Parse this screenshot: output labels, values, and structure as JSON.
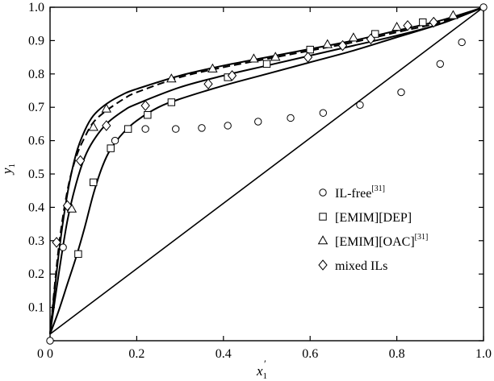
{
  "chart_data": {
    "type": "scatter",
    "xlabel": "x",
    "xlabel_sub": "1",
    "xlabel_prime": "′",
    "ylabel": "y",
    "ylabel_sub": "1",
    "xlim": [
      0,
      1.0
    ],
    "ylim": [
      0,
      1.0
    ],
    "x_ticks": [
      "0",
      "0.2",
      "0.4",
      "0.6",
      "0.8",
      "1.0"
    ],
    "y_ticks": [
      "0",
      "0.1",
      "0.2",
      "0.3",
      "0.4",
      "0.5",
      "0.6",
      "0.7",
      "0.8",
      "0.9",
      "1.0"
    ],
    "legend_position": "center-right",
    "series": [
      {
        "name": "IL-free",
        "ref": "[31]",
        "marker": "circle",
        "points": [
          [
            0.0,
            0.0
          ],
          [
            0.03,
            0.28
          ],
          [
            0.15,
            0.6
          ],
          [
            0.22,
            0.635
          ],
          [
            0.29,
            0.635
          ],
          [
            0.35,
            0.638
          ],
          [
            0.41,
            0.645
          ],
          [
            0.48,
            0.657
          ],
          [
            0.555,
            0.668
          ],
          [
            0.63,
            0.683
          ],
          [
            0.715,
            0.707
          ],
          [
            0.81,
            0.745
          ],
          [
            0.9,
            0.83
          ],
          [
            0.95,
            0.895
          ],
          [
            1.0,
            1.0
          ]
        ]
      },
      {
        "name": "[EMIM][DEP]",
        "ref": "",
        "marker": "square",
        "points": [
          [
            0.065,
            0.26
          ],
          [
            0.1,
            0.475
          ],
          [
            0.14,
            0.577
          ],
          [
            0.18,
            0.635
          ],
          [
            0.225,
            0.677
          ],
          [
            0.28,
            0.715
          ],
          [
            0.41,
            0.79
          ],
          [
            0.5,
            0.83
          ],
          [
            0.6,
            0.873
          ],
          [
            0.75,
            0.92
          ],
          [
            0.86,
            0.955
          ]
        ]
      },
      {
        "name": "[EMIM][OAC]",
        "ref": "[31]",
        "marker": "triangle",
        "points": [
          [
            0.05,
            0.395
          ],
          [
            0.1,
            0.64
          ],
          [
            0.13,
            0.695
          ],
          [
            0.28,
            0.785
          ],
          [
            0.375,
            0.815
          ],
          [
            0.47,
            0.845
          ],
          [
            0.52,
            0.85
          ],
          [
            0.64,
            0.888
          ],
          [
            0.7,
            0.908
          ],
          [
            0.8,
            0.94
          ],
          [
            0.93,
            0.975
          ]
        ]
      },
      {
        "name": "mixed ILs",
        "ref": "",
        "marker": "diamond",
        "points": [
          [
            0.015,
            0.295
          ],
          [
            0.04,
            0.405
          ],
          [
            0.07,
            0.54
          ],
          [
            0.13,
            0.645
          ],
          [
            0.22,
            0.705
          ],
          [
            0.365,
            0.77
          ],
          [
            0.42,
            0.795
          ],
          [
            0.595,
            0.85
          ],
          [
            0.675,
            0.885
          ],
          [
            0.74,
            0.905
          ],
          [
            0.825,
            0.945
          ],
          [
            0.885,
            0.955
          ]
        ]
      }
    ],
    "curves": [
      {
        "style": "solid",
        "points": [
          [
            0.0,
            0.02
          ],
          [
            0.02,
            0.09
          ],
          [
            0.04,
            0.17
          ],
          [
            0.06,
            0.25
          ],
          [
            0.08,
            0.34
          ],
          [
            0.1,
            0.44
          ],
          [
            0.12,
            0.52
          ],
          [
            0.14,
            0.575
          ],
          [
            0.17,
            0.625
          ],
          [
            0.2,
            0.66
          ],
          [
            0.25,
            0.7
          ],
          [
            0.3,
            0.725
          ],
          [
            0.4,
            0.765
          ],
          [
            0.5,
            0.8
          ],
          [
            0.6,
            0.835
          ],
          [
            0.7,
            0.87
          ],
          [
            0.8,
            0.91
          ],
          [
            0.9,
            0.95
          ],
          [
            1.0,
            1.0
          ]
        ]
      },
      {
        "style": "solid",
        "points": [
          [
            0.0,
            0.02
          ],
          [
            0.02,
            0.2
          ],
          [
            0.04,
            0.36
          ],
          [
            0.06,
            0.47
          ],
          [
            0.08,
            0.55
          ],
          [
            0.1,
            0.6
          ],
          [
            0.13,
            0.65
          ],
          [
            0.17,
            0.69
          ],
          [
            0.2,
            0.71
          ],
          [
            0.3,
            0.76
          ],
          [
            0.4,
            0.795
          ],
          [
            0.5,
            0.825
          ],
          [
            0.6,
            0.855
          ],
          [
            0.7,
            0.885
          ],
          [
            0.8,
            0.915
          ],
          [
            0.9,
            0.95
          ],
          [
            1.0,
            1.0
          ]
        ]
      },
      {
        "style": "dashed",
        "points": [
          [
            0.0,
            0.02
          ],
          [
            0.02,
            0.28
          ],
          [
            0.04,
            0.45
          ],
          [
            0.06,
            0.55
          ],
          [
            0.08,
            0.61
          ],
          [
            0.1,
            0.655
          ],
          [
            0.13,
            0.69
          ],
          [
            0.17,
            0.725
          ],
          [
            0.2,
            0.745
          ],
          [
            0.3,
            0.79
          ],
          [
            0.4,
            0.82
          ],
          [
            0.5,
            0.845
          ],
          [
            0.6,
            0.87
          ],
          [
            0.7,
            0.895
          ],
          [
            0.8,
            0.925
          ],
          [
            0.9,
            0.955
          ],
          [
            1.0,
            1.0
          ]
        ]
      },
      {
        "style": "solid",
        "points": [
          [
            0.0,
            0.02
          ],
          [
            0.02,
            0.26
          ],
          [
            0.04,
            0.44
          ],
          [
            0.06,
            0.56
          ],
          [
            0.08,
            0.63
          ],
          [
            0.1,
            0.675
          ],
          [
            0.13,
            0.71
          ],
          [
            0.17,
            0.74
          ],
          [
            0.2,
            0.755
          ],
          [
            0.3,
            0.795
          ],
          [
            0.4,
            0.825
          ],
          [
            0.5,
            0.85
          ],
          [
            0.6,
            0.875
          ],
          [
            0.7,
            0.9
          ],
          [
            0.8,
            0.93
          ],
          [
            0.9,
            0.96
          ],
          [
            1.0,
            1.0
          ]
        ]
      },
      {
        "style": "diagonal",
        "points": [
          [
            0.0,
            0.02
          ],
          [
            1.0,
            1.0
          ]
        ]
      }
    ]
  }
}
